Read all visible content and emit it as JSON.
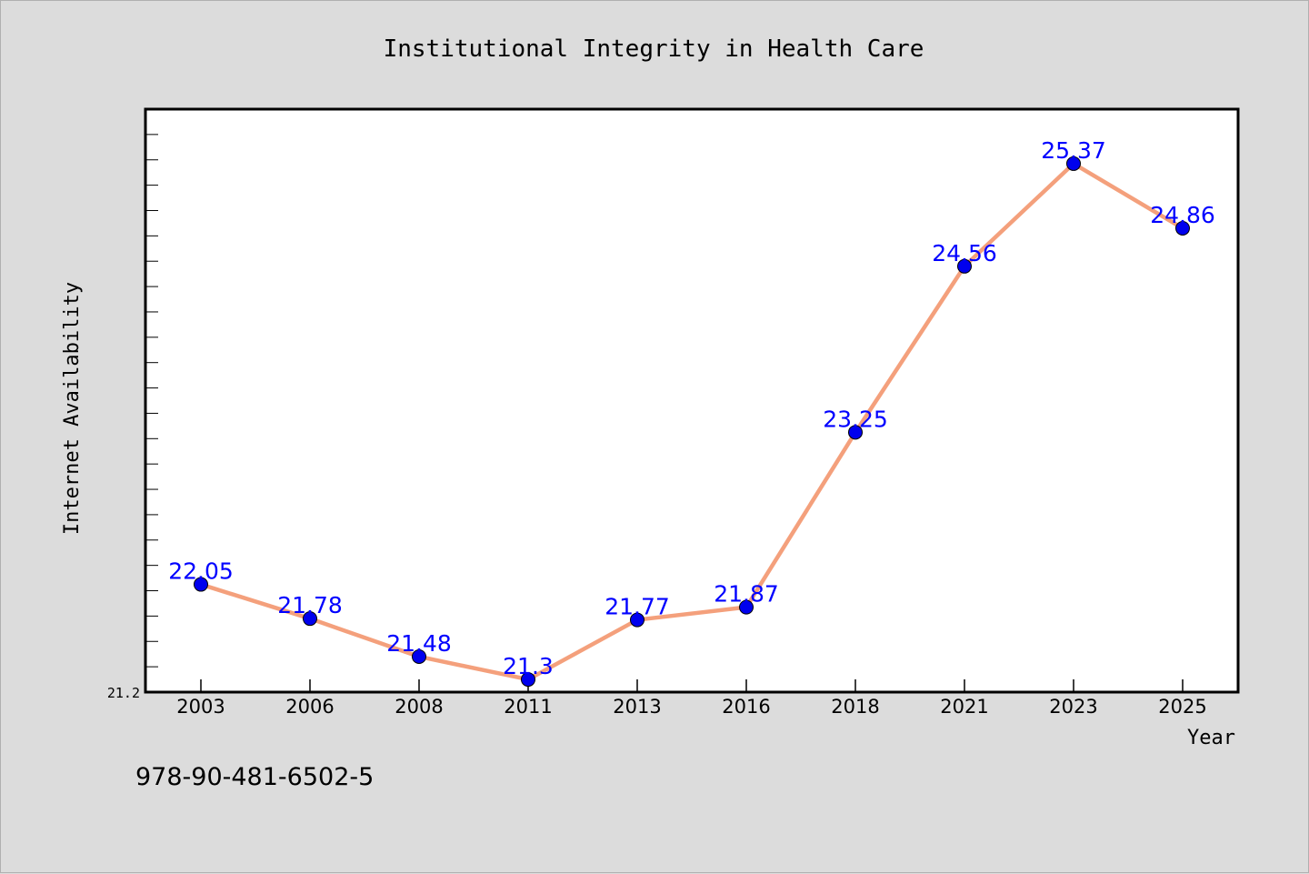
{
  "chart_data": {
    "type": "line",
    "title": "Institutional Integrity in Health Care",
    "xlabel": "Year",
    "ylabel": "Internet Availability",
    "categories": [
      "2003",
      "2006",
      "2008",
      "2011",
      "2013",
      "2016",
      "2018",
      "2021",
      "2023",
      "2025"
    ],
    "series": [
      {
        "values": [
          22.05,
          21.78,
          21.48,
          21.3,
          21.77,
          21.87,
          23.25,
          24.56,
          25.37,
          24.86
        ],
        "data_labels": [
          "22.05",
          "21.78",
          "21.48",
          "21.3",
          "21.77",
          "21.87",
          "23.25",
          "24.56",
          "25.37",
          "24.86"
        ],
        "line_color": "#f4a07c",
        "marker_color": "#0000ee"
      }
    ],
    "ylim": [
      21.2,
      25.8
    ],
    "y_tick_labels": [
      "21.2"
    ],
    "grid": false,
    "label_color": "#0000ff"
  },
  "footer": {
    "isbn": "978-90-481-6502-5"
  },
  "colors": {
    "background": "#dcdcdc",
    "plot_background": "#ffffff"
  }
}
